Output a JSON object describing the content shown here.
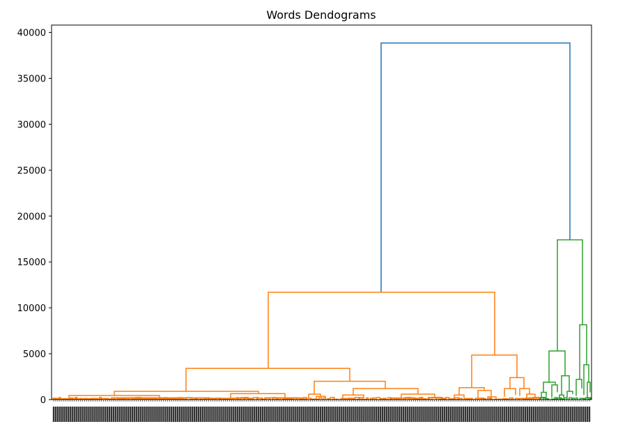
{
  "chart_data": {
    "type": "dendrogram",
    "title": "Words Dendograms",
    "xlabel": "",
    "ylabel": "",
    "ylim": [
      0,
      40800
    ],
    "yticks": [
      0,
      5000,
      10000,
      15000,
      20000,
      25000,
      30000,
      35000,
      40000
    ],
    "grid": false,
    "x_tick_labels": "dense, illegible leaf labels",
    "colors": {
      "orange_cluster": "#ff7f0e",
      "green_cluster": "#2ca02c",
      "root": "#1f77b4"
    },
    "merges": [
      {
        "name": "root",
        "height": 38850,
        "color": "#1f77b4"
      },
      {
        "name": "orange-cluster",
        "height": 11700,
        "color": "#ff7f0e"
      },
      {
        "name": "green-cluster",
        "height": 17400,
        "color": "#2ca02c"
      },
      {
        "name": "orange-left",
        "height": 3400,
        "color": "#ff7f0e"
      },
      {
        "name": "orange-right",
        "height": 4850,
        "color": "#ff7f0e"
      },
      {
        "name": "green-left",
        "height": 5300,
        "color": "#2ca02c"
      },
      {
        "name": "green-right",
        "height": 8150,
        "color": "#2ca02c"
      }
    ]
  }
}
